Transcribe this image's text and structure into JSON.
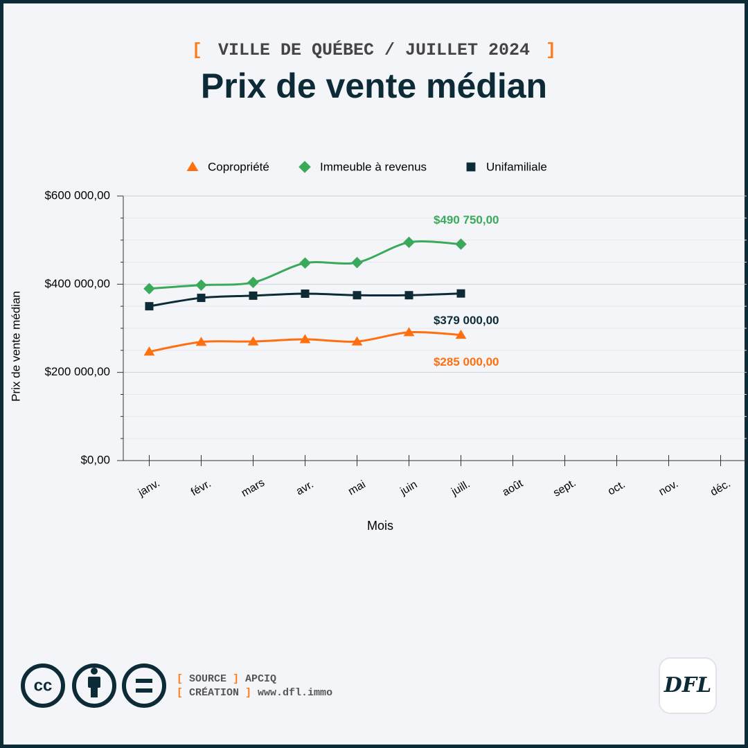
{
  "kicker": "VILLE DE QUÉBEC / JUILLET 2024",
  "brackets": [
    "[",
    "]"
  ],
  "chart_data": {
    "type": "line",
    "title": "Prix de vente médian",
    "x_label": "Mois",
    "y_label": "Prix de vente médian",
    "categories": [
      "janv.",
      "févr.",
      "mars",
      "avr.",
      "mai",
      "juin",
      "juill.",
      "août",
      "sept.",
      "oct.",
      "nov.",
      "déc."
    ],
    "series": [
      {
        "name": "Copropriété",
        "color": "#ff6f0f",
        "marker": "triangle",
        "values": [
          247000,
          269000,
          270000,
          275000,
          270000,
          291000,
          285000,
          null,
          null,
          null,
          null,
          null
        ],
        "value_labels": [
          null,
          null,
          null,
          null,
          null,
          null,
          "$285 000,00",
          null,
          null,
          null,
          null,
          null
        ]
      },
      {
        "name": "Immeuble à revenus",
        "color": "#3aaa5a",
        "marker": "diamond",
        "values": [
          390000,
          398000,
          404000,
          448000,
          449000,
          495000,
          490750,
          null,
          null,
          null,
          null,
          null
        ],
        "value_labels": [
          null,
          null,
          null,
          null,
          null,
          null,
          "$490 750,00",
          null,
          null,
          null,
          null,
          null
        ]
      },
      {
        "name": "Unifamiliale",
        "color": "#0d2b36",
        "marker": "square",
        "values": [
          350000,
          369000,
          374000,
          378500,
          375000,
          375000,
          379000,
          null,
          null,
          null,
          null,
          null
        ],
        "value_labels": [
          null,
          null,
          null,
          null,
          null,
          null,
          "$379 000,00",
          null,
          null,
          null,
          null,
          null
        ]
      }
    ],
    "ylim": [
      0,
      600000
    ],
    "yticks": [
      {
        "value": 0,
        "label": "$0,00"
      },
      {
        "value": 200000,
        "label": "$200 000,00"
      },
      {
        "value": 400000,
        "label": "$400 000,00"
      },
      {
        "value": 600000,
        "label": "$600 000,00"
      }
    ],
    "yticks_minor": [
      50000,
      100000,
      150000,
      250000,
      300000,
      350000,
      450000,
      500000,
      550000
    ],
    "grid": true,
    "legend": "top"
  },
  "footer": {
    "credits": [
      {
        "label": "SOURCE",
        "value": "APCIQ"
      },
      {
        "label": "CRÉATION",
        "value": "www.dfl.immo"
      }
    ],
    "license_icon": "cc",
    "logo": "DFL"
  }
}
